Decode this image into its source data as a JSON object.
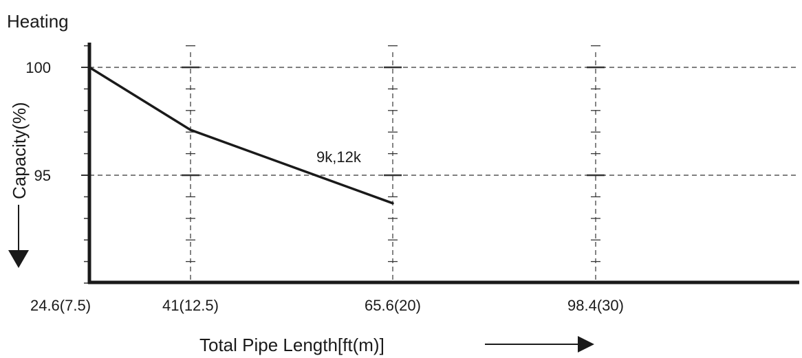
{
  "chart_data": {
    "type": "line",
    "title": "Heating",
    "xlabel": "Total Pipe Length[ft(m)]",
    "ylabel": "Capacity(%)",
    "x_ticks": [
      {
        "value": 24.6,
        "label": "24.6(7.5)"
      },
      {
        "value": 41,
        "label": "41(12.5)"
      },
      {
        "value": 65.6,
        "label": "65.6(20)"
      },
      {
        "value": 98.4,
        "label": "98.4(30)"
      }
    ],
    "y_ticks": [
      {
        "value": 95,
        "label": "95"
      },
      {
        "value": 100,
        "label": "100"
      }
    ],
    "xlim": [
      24.6,
      130
    ],
    "ylim": [
      90,
      101
    ],
    "grid": true,
    "series": [
      {
        "name": "9k,12k",
        "x": [
          24.6,
          41,
          65.6
        ],
        "y": [
          100,
          97.1,
          93.7
        ]
      }
    ]
  },
  "colors": {
    "line": "#1a1a1a",
    "grid": "#333333"
  }
}
